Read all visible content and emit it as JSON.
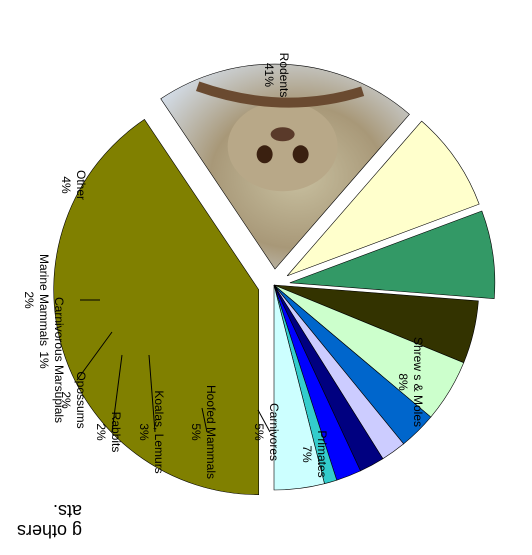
{
  "chart_data": {
    "type": "pie",
    "title": "",
    "slices": [
      {
        "label": "Rodents",
        "value": 41,
        "pct_label": "41%",
        "color": "#808000",
        "exploded": true
      },
      {
        "label": "Bats",
        "value": 21,
        "pct_label": "",
        "color": "#e8f0ff",
        "exploded": true,
        "image": "bat-photo",
        "border_color": "#ffcc00"
      },
      {
        "label": "Shrew s & Moles",
        "value": 8,
        "pct_label": "8%",
        "color": "#ffffcc",
        "exploded": true
      },
      {
        "label": "Primates",
        "value": 7,
        "pct_label": "7%",
        "color": "#339966",
        "exploded": true
      },
      {
        "label": "Carnivores",
        "value": 5,
        "pct_label": "5%",
        "color": "#333300",
        "exploded": false
      },
      {
        "label": "Hoofed Mammals",
        "value": 5,
        "pct_label": "5%",
        "color": "#ccffcc",
        "exploded": false
      },
      {
        "label": "Koalas, Lemurs",
        "value": 3,
        "pct_label": "3%",
        "color": "#0066cc",
        "exploded": false
      },
      {
        "label": "Rabbits",
        "value": 2,
        "pct_label": "2%",
        "color": "#ccccff",
        "exploded": false
      },
      {
        "label": "Opossums",
        "value": 2,
        "pct_label": "2%",
        "color": "#000080",
        "exploded": false
      },
      {
        "label": "Marine Mammals",
        "value": 2,
        "pct_label": "2%",
        "color": "#0000ff",
        "exploded": false
      },
      {
        "label": "Carnivorous Marsupials",
        "value": 1,
        "pct_label": "1%",
        "color": "#33cccc",
        "exploded": false
      },
      {
        "label": "Other",
        "value": 4,
        "pct_label": "4%",
        "color": "#ccffff",
        "exploded": false
      }
    ],
    "rotation": "180",
    "legend": "none"
  },
  "caption_fragment": "g others\nats."
}
